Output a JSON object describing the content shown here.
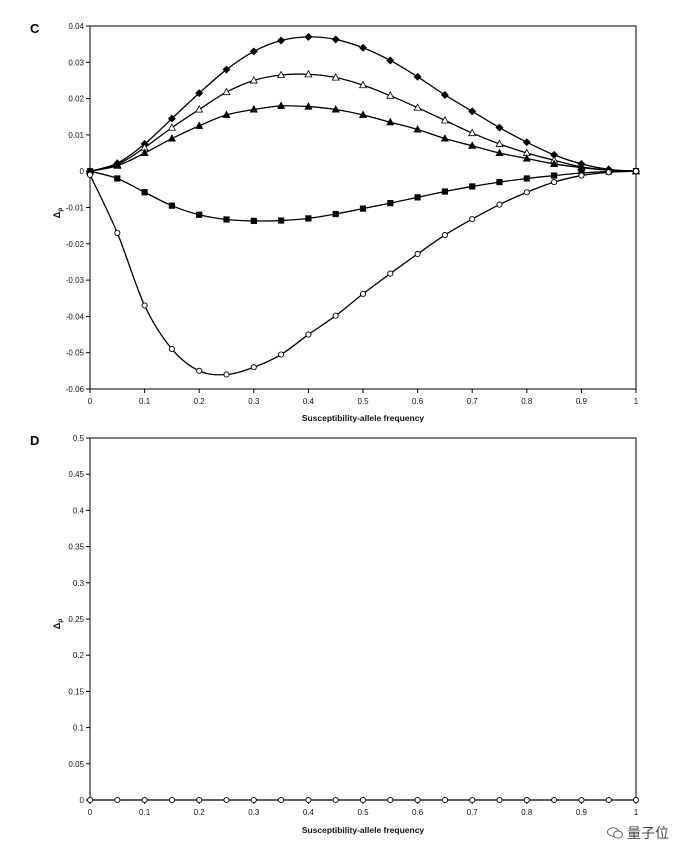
{
  "watermark": {
    "text": "量子位"
  },
  "chart_data": [
    {
      "type": "line",
      "panel_label": "C",
      "xlabel": "Susceptibility-allele frequency",
      "ylabel": "Δp",
      "xlim": [
        0,
        1
      ],
      "ylim": [
        -0.06,
        0.04
      ],
      "xticks": [
        0,
        0.1,
        0.2,
        0.3,
        0.4,
        0.5,
        0.6,
        0.7,
        0.8,
        0.9,
        1
      ],
      "xtick_labels": [
        "0",
        "0.1",
        "0.2",
        "0.3",
        "0.4",
        "0.5",
        "0.6",
        "0.7",
        "0.8",
        "0.9",
        "1"
      ],
      "yticks": [
        -0.06,
        -0.05,
        -0.04,
        -0.03,
        -0.02,
        -0.01,
        0,
        0.01,
        0.02,
        0.03,
        0.04
      ],
      "ytick_labels": [
        "-0.06",
        "-0.05",
        "-0.04",
        "-0.03",
        "-0.02",
        "-0.01",
        "0",
        "0.01",
        "0.02",
        "0.03",
        "0.04"
      ],
      "x": [
        0,
        0.05,
        0.1,
        0.15,
        0.2,
        0.25,
        0.3,
        0.35,
        0.4,
        0.45,
        0.5,
        0.55,
        0.6,
        0.65,
        0.7,
        0.75,
        0.8,
        0.85,
        0.9,
        0.95,
        1
      ],
      "grid": false,
      "series": [
        {
          "marker": "diamond-filled",
          "values": [
            0,
            0.0022,
            0.0075,
            0.0145,
            0.0215,
            0.028,
            0.033,
            0.036,
            0.037,
            0.0363,
            0.034,
            0.0305,
            0.026,
            0.021,
            0.0165,
            0.012,
            0.008,
            0.0045,
            0.002,
            0.0005,
            0
          ]
        },
        {
          "marker": "triangle-open",
          "values": [
            0,
            0.0018,
            0.0065,
            0.012,
            0.017,
            0.0218,
            0.025,
            0.0265,
            0.0267,
            0.0258,
            0.0237,
            0.0208,
            0.0175,
            0.014,
            0.0105,
            0.0075,
            0.005,
            0.003,
            0.0012,
            0.0003,
            0
          ]
        },
        {
          "marker": "triangle-filled",
          "values": [
            0,
            0.0015,
            0.005,
            0.009,
            0.0125,
            0.0155,
            0.017,
            0.018,
            0.0178,
            0.017,
            0.0155,
            0.0135,
            0.0115,
            0.009,
            0.007,
            0.005,
            0.0035,
            0.002,
            0.001,
            0.0003,
            0
          ]
        },
        {
          "marker": "square-filled",
          "values": [
            0,
            -0.002,
            -0.0058,
            -0.0095,
            -0.012,
            -0.0133,
            -0.0137,
            -0.0136,
            -0.013,
            -0.0118,
            -0.0103,
            -0.0088,
            -0.0072,
            -0.0056,
            -0.0042,
            -0.003,
            -0.002,
            -0.0012,
            -0.0005,
            -0.0001,
            0
          ]
        },
        {
          "marker": "circle-open",
          "values": [
            -0.001,
            -0.017,
            -0.037,
            -0.049,
            -0.055,
            -0.056,
            -0.054,
            -0.0505,
            -0.045,
            -0.0398,
            -0.0338,
            -0.0282,
            -0.0228,
            -0.0176,
            -0.0132,
            -0.0092,
            -0.0058,
            -0.003,
            -0.0012,
            -0.0003,
            0
          ]
        }
      ]
    },
    {
      "type": "line",
      "panel_label": "D",
      "xlabel": "Susceptibility-allele frequency",
      "ylabel": "Δp",
      "xlim": [
        0,
        1
      ],
      "ylim": [
        0,
        0.5
      ],
      "xticks": [
        0,
        0.1,
        0.2,
        0.3,
        0.4,
        0.5,
        0.6,
        0.7,
        0.8,
        0.9,
        1
      ],
      "xtick_labels": [
        "0",
        "0.1",
        "0.2",
        "0.3",
        "0.4",
        "0.5",
        "0.6",
        "0.7",
        "0.8",
        "0.9",
        "1"
      ],
      "yticks": [
        0,
        0.05,
        0.1,
        0.15,
        0.2,
        0.25,
        0.3,
        0.35,
        0.4,
        0.45,
        0.5
      ],
      "ytick_labels": [
        "0",
        "0.05",
        "0.1",
        "0.15",
        "0.2",
        "0.25",
        "0.3",
        "0.35",
        "0.4",
        "0.45",
        "0.5"
      ],
      "x": [
        0,
        0.05,
        0.1,
        0.15,
        0.2,
        0.25,
        0.3,
        0.35,
        0.4,
        0.45,
        0.5,
        0.55,
        0.6,
        0.65,
        0.7,
        0.75,
        0.8,
        0.85,
        0.9,
        0.95,
        1
      ],
      "grid": false,
      "series": [
        {
          "marker": "circle-open",
          "values": [
            0,
            0,
            0,
            0,
            0,
            0,
            0,
            0,
            0,
            0,
            0,
            0,
            0,
            0,
            0,
            0,
            0,
            0,
            0,
            0,
            0
          ]
        }
      ]
    }
  ]
}
